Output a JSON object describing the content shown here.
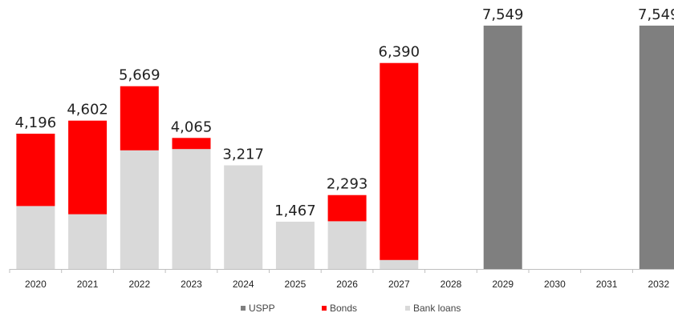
{
  "chart_data": {
    "type": "bar",
    "stacked": true,
    "categories": [
      "2020",
      "2021",
      "2022",
      "2023",
      "2024",
      "2025",
      "2026",
      "2027",
      "2028",
      "2029",
      "2030",
      "2031",
      "2032"
    ],
    "series": [
      {
        "name": "Bank loans",
        "color": "#d9d9d9",
        "values": [
          1950,
          1700,
          3680,
          3720,
          3217,
          1467,
          1480,
          280,
          0,
          0,
          0,
          0,
          0
        ]
      },
      {
        "name": "Bonds",
        "color": "#ff0000",
        "values": [
          2246,
          2902,
          1989,
          345,
          0,
          0,
          813,
          6110,
          0,
          0,
          0,
          0,
          0
        ]
      },
      {
        "name": "USPP",
        "color": "#7f7f7f",
        "values": [
          0,
          0,
          0,
          0,
          0,
          0,
          0,
          0,
          0,
          7549,
          0,
          0,
          7549
        ]
      }
    ],
    "totals": [
      "4,196",
      "4,602",
      "5,669",
      "4,065",
      "3,217",
      "1,467",
      "2,293",
      "6,390",
      "",
      "7,549",
      "",
      "",
      "7,549"
    ],
    "legend_order": [
      "USPP",
      "Bonds",
      "Bank loans"
    ],
    "legend_position": "bottom",
    "ylim": [
      0,
      7900
    ],
    "grid": false,
    "title": "",
    "xlabel": "",
    "ylabel": ""
  }
}
